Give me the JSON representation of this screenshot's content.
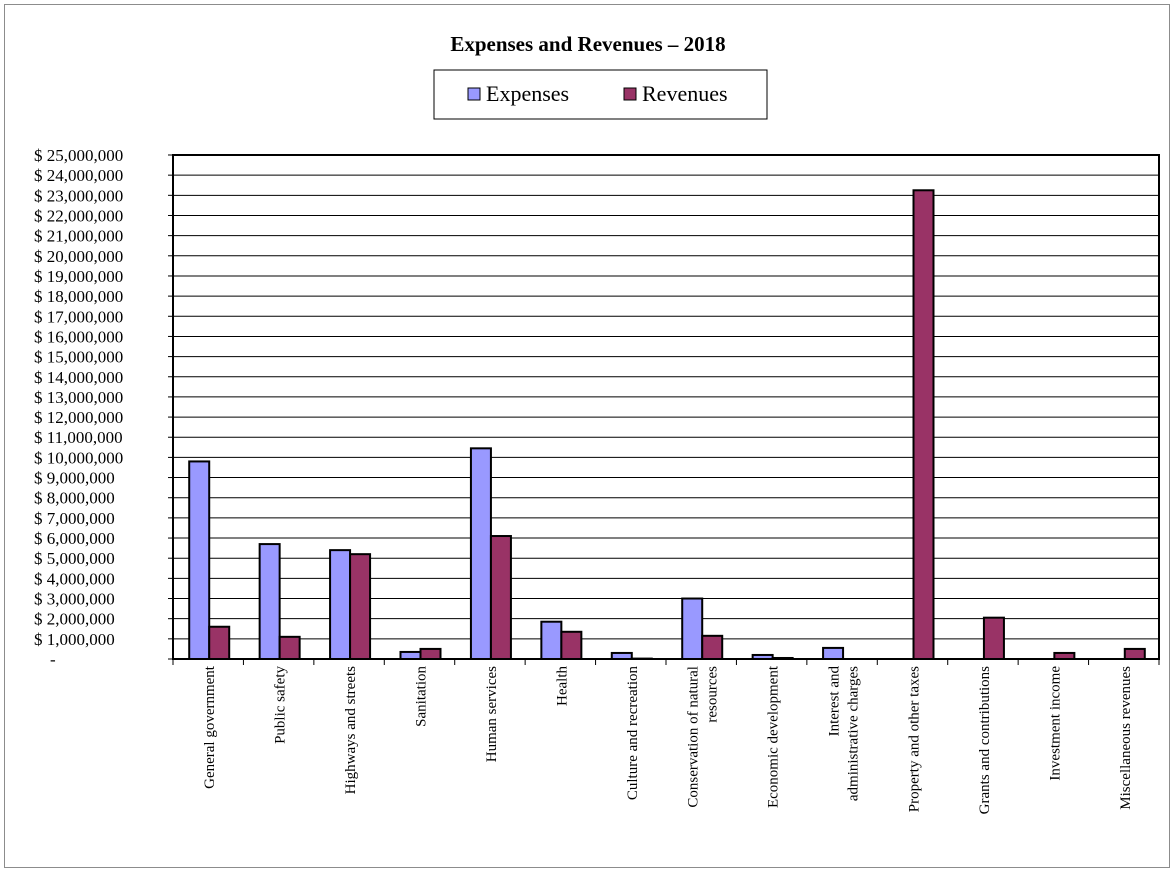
{
  "chart_data": {
    "type": "bar",
    "title": "Expenses and Revenues – 2018",
    "xlabel": "",
    "ylabel": "",
    "ylim": [
      0,
      25000000
    ],
    "ytick_step": 1000000,
    "ytick_format": "$ #,##0",
    "zero_label": "-",
    "grid": true,
    "legend_position": "top-center",
    "categories": [
      [
        "General government"
      ],
      [
        "Public safety"
      ],
      [
        "Highways and streets"
      ],
      [
        "Sanitation"
      ],
      [
        "Human services"
      ],
      [
        "Health"
      ],
      [
        "Culture and recreation"
      ],
      [
        "Conservation of natural",
        "resources"
      ],
      [
        "Economic development"
      ],
      [
        "Interest and",
        "administrative charges"
      ],
      [
        "Property and other taxes"
      ],
      [
        "Grants and contributions"
      ],
      [
        "Investment income"
      ],
      [
        "Miscellaneous revenues"
      ]
    ],
    "series": [
      {
        "name": "Expenses",
        "color": "#9999ff",
        "values": [
          9800000,
          5700000,
          5400000,
          350000,
          10450000,
          1850000,
          300000,
          3000000,
          200000,
          550000,
          0,
          0,
          0,
          0
        ]
      },
      {
        "name": "Revenues",
        "color": "#993366",
        "values": [
          1600000,
          1100000,
          5200000,
          500000,
          6100000,
          1350000,
          20000,
          1150000,
          50000,
          0,
          23250000,
          2050000,
          300000,
          500000
        ]
      }
    ]
  }
}
